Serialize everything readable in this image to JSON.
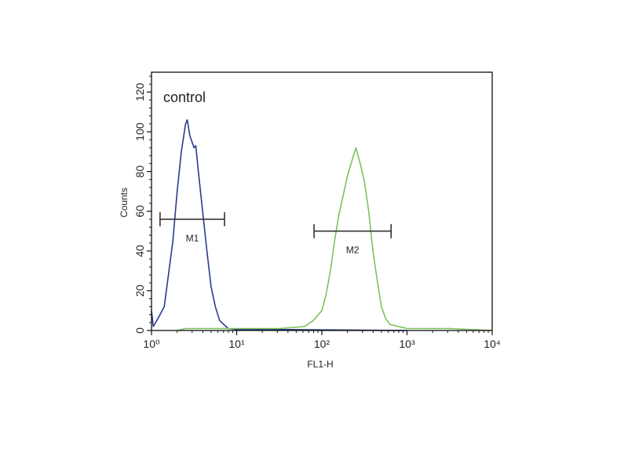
{
  "chart_data": {
    "type": "line",
    "title": "",
    "annotation": "control",
    "xlabel": "FL1-H",
    "ylabel": "Counts",
    "xscale": "log",
    "xlim": [
      1,
      10000
    ],
    "ylim": [
      0,
      130
    ],
    "x_tick_values": [
      1,
      10,
      100,
      1000,
      10000
    ],
    "x_tick_labels": [
      "10⁰",
      "10¹",
      "10²",
      "10³",
      "10⁴"
    ],
    "y_tick_values": [
      0,
      20,
      40,
      60,
      80,
      100,
      120
    ],
    "y_tick_labels": [
      "0",
      "20",
      "40",
      "60",
      "80",
      "100",
      "120"
    ],
    "grid": false,
    "series": [
      {
        "color": "#2b3a8c",
        "x": [
          1,
          1.05,
          1.12,
          1.26,
          1.41,
          1.58,
          1.78,
          2.0,
          2.24,
          2.51,
          2.63,
          2.82,
          3.16,
          3.31,
          3.55,
          3.98,
          4.47,
          5.01,
          5.62,
          6.31,
          7.08,
          7.94,
          10,
          31.6,
          100,
          1000
        ],
        "values": [
          10,
          2,
          4,
          8,
          12,
          28,
          45,
          70,
          90,
          104,
          106,
          98,
          92,
          93,
          80,
          60,
          40,
          22,
          12,
          5,
          3,
          1,
          0.5,
          0.5,
          0.3,
          0
        ]
      },
      {
        "color": "#7cc35a",
        "x": [
          2,
          2.51,
          10,
          31.6,
          63.1,
          79.4,
          100,
          112,
          126,
          141,
          158,
          178,
          200,
          224,
          251,
          282,
          316,
          355,
          398,
          447,
          501,
          562,
          631,
          794,
          1000,
          3162,
          10000
        ],
        "values": [
          0,
          1,
          1,
          1,
          2,
          5,
          10,
          18,
          30,
          45,
          58,
          68,
          78,
          85,
          92,
          84,
          75,
          60,
          40,
          25,
          12,
          6,
          3,
          2,
          1,
          1,
          0
        ]
      }
    ],
    "markers": [
      {
        "label": "M1",
        "x_start": 1.26,
        "x_end": 7.2,
        "y": 56,
        "color": "#333333"
      },
      {
        "label": "M2",
        "x_start": 81,
        "x_end": 650,
        "y": 50,
        "color": "#333333"
      }
    ]
  }
}
